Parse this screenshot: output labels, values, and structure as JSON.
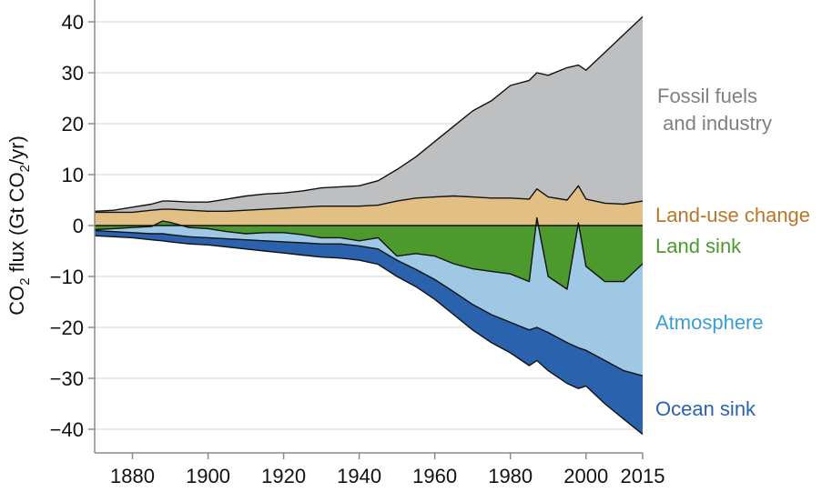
{
  "chart_data": {
    "type": "area",
    "ylabel": {
      "prefix": "CO",
      "sub1": "2",
      "middle": " flux (Gt CO",
      "sub2": "2",
      "suffix": "/yr)"
    },
    "xlim": [
      1870,
      2015
    ],
    "ylim": [
      -44,
      44
    ],
    "x_ticks": [
      1880,
      1900,
      1920,
      1940,
      1960,
      1980,
      2000,
      2015
    ],
    "x_tick_labels": [
      "1880",
      "1900",
      "1920",
      "1940",
      "1960",
      "1980",
      "2000",
      "2015"
    ],
    "y_ticks": [
      40,
      30,
      20,
      10,
      0,
      -10,
      -20,
      -30,
      -40
    ],
    "y_tick_labels": [
      "40",
      "30",
      "20",
      "10",
      "0",
      "−10",
      "−20",
      "−30",
      "−40"
    ],
    "grid": "horizontal",
    "colors": {
      "fossil": "#bebfc1",
      "landuse": "#e2bf84",
      "land_sink": "#4c9a2e",
      "atmosphere": "#9fc8e4",
      "ocean": "#2b62ae",
      "label_fossil": "#808080",
      "label_landuse": "#b9762a",
      "label_land": "#4c9a2e",
      "label_atmosphere": "#3a9ed0",
      "label_ocean": "#2b62ae"
    },
    "series_labels": {
      "fossil": [
        "Fossil fuels",
        " and industry"
      ],
      "landuse": "Land-use change",
      "land_sink": "Land sink",
      "atmosphere": "Atmosphere",
      "ocean": "Ocean sink"
    },
    "years": [
      1870,
      1875,
      1880,
      1885,
      1888,
      1890,
      1895,
      1900,
      1905,
      1910,
      1915,
      1920,
      1925,
      1930,
      1935,
      1940,
      1945,
      1950,
      1955,
      1960,
      1965,
      1970,
      1975,
      1980,
      1985,
      1987,
      1990,
      1995,
      1998,
      2000,
      2005,
      2010,
      2015
    ],
    "landuse_top": [
      2.6,
      2.6,
      2.6,
      3.0,
      3.2,
      3.2,
      3.0,
      2.8,
      2.8,
      3.0,
      3.2,
      3.4,
      3.6,
      3.8,
      3.8,
      3.8,
      4.0,
      4.8,
      5.4,
      5.6,
      5.8,
      5.6,
      5.4,
      5.4,
      5.2,
      7.2,
      5.6,
      5.0,
      7.8,
      5.2,
      4.4,
      4.2,
      4.8
    ],
    "fossil_top": [
      2.8,
      3.0,
      3.6,
      4.2,
      4.8,
      4.8,
      4.6,
      4.6,
      5.2,
      5.8,
      6.2,
      6.4,
      6.8,
      7.4,
      7.6,
      7.8,
      8.8,
      11.0,
      13.5,
      16.5,
      19.5,
      22.5,
      24.5,
      27.5,
      28.5,
      30.0,
      29.5,
      31.0,
      31.5,
      30.5,
      34.0,
      37.5,
      41.0
    ],
    "land_sink_bottom": [
      -0.8,
      -0.6,
      -0.4,
      -0.2,
      0.9,
      0.6,
      -0.4,
      -0.6,
      -1.2,
      -1.6,
      -1.4,
      -1.4,
      -1.8,
      -2.4,
      -2.4,
      -3.0,
      -2.4,
      -6.0,
      -5.5,
      -6.0,
      -7.5,
      -8.5,
      -9.0,
      -9.5,
      -11.0,
      1.5,
      -10.0,
      -12.5,
      0.5,
      -8.0,
      -11.0,
      -11.0,
      -7.5
    ],
    "atmosphere_bottom": [
      -1.0,
      -1.2,
      -1.4,
      -1.6,
      -1.6,
      -1.8,
      -2.2,
      -2.4,
      -2.6,
      -2.8,
      -3.0,
      -3.2,
      -3.4,
      -3.6,
      -3.6,
      -4.0,
      -4.6,
      -6.8,
      -8.6,
      -10.6,
      -13.0,
      -15.5,
      -17.5,
      -19.0,
      -20.5,
      -20.0,
      -21.0,
      -23.0,
      -24.0,
      -24.5,
      -26.5,
      -28.5,
      -29.5
    ],
    "ocean_bottom": [
      -2.0,
      -2.2,
      -2.4,
      -2.8,
      -3.0,
      -3.2,
      -3.6,
      -3.8,
      -4.2,
      -4.6,
      -5.0,
      -5.4,
      -5.8,
      -6.2,
      -6.4,
      -6.8,
      -7.6,
      -10.0,
      -12.0,
      -14.5,
      -17.5,
      -20.5,
      -23.0,
      -25.0,
      -27.5,
      -26.5,
      -28.5,
      -31.0,
      -32.0,
      -31.5,
      -35.0,
      -38.0,
      -41.0
    ]
  }
}
